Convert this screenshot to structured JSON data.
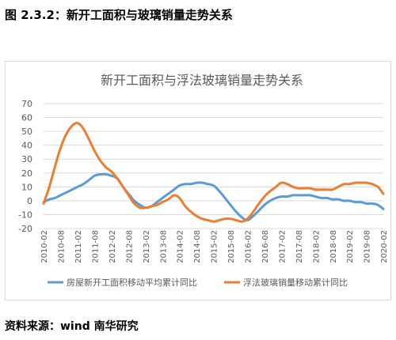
{
  "figure": {
    "title": "图 2.3.2：新开工面积与玻璃销量走势关系",
    "source": "资料来源：wind 南华研究"
  },
  "colors": {
    "series_blue": "#5b9bd5",
    "series_orange": "#ed7d31",
    "grid": "#d9d9d9",
    "axis_text": "#595959"
  },
  "chart_data": {
    "type": "line",
    "title": "新开工面积与浮法玻璃销量走势关系",
    "x_ticks": [
      "2010-02",
      "2010-08",
      "2011-02",
      "2011-08",
      "2012-02",
      "2012-08",
      "2013-02",
      "2013-08",
      "2014-02",
      "2014-08",
      "2015-02",
      "2015-08",
      "2016-02",
      "2016-08",
      "2017-02",
      "2017-08",
      "2018-02",
      "2018-08",
      "2019-02",
      "2019-08",
      "2020-02"
    ],
    "ylim": [
      -20,
      70
    ],
    "y_ticks": [
      -20,
      -10,
      0,
      10,
      20,
      30,
      40,
      50,
      60,
      70
    ],
    "grid": true,
    "legend_position": "bottom",
    "series": [
      {
        "name": "房屋新开工面积移动平均累计同比",
        "color": "#5b9bd5",
        "x": [
          2010.08,
          2010.25,
          2010.42,
          2010.58,
          2010.75,
          2010.92,
          2011.08,
          2011.25,
          2011.42,
          2011.58,
          2011.75,
          2011.92,
          2012.08,
          2012.25,
          2012.42,
          2012.58,
          2012.75,
          2012.92,
          2013.08,
          2013.25,
          2013.42,
          2013.58,
          2013.75,
          2013.92,
          2014.08,
          2014.25,
          2014.42,
          2014.58,
          2014.75,
          2014.92,
          2015.08,
          2015.25,
          2015.42,
          2015.58,
          2015.75,
          2015.92,
          2016.08,
          2016.25,
          2016.42,
          2016.58,
          2016.75,
          2016.92,
          2017.08,
          2017.25,
          2017.42,
          2017.58,
          2017.75,
          2017.92,
          2018.08,
          2018.25,
          2018.42,
          2018.58,
          2018.75,
          2018.92,
          2019.08,
          2019.25,
          2019.42,
          2019.58,
          2019.75,
          2019.92,
          2020.08
        ],
        "y": [
          -1,
          1,
          2,
          4,
          6,
          8,
          10,
          12,
          15,
          18,
          19,
          19,
          18,
          16,
          10,
          5,
          0,
          -3,
          -5,
          -4,
          -1,
          2,
          5,
          8,
          11,
          12,
          12,
          13,
          13,
          12,
          11,
          7,
          2,
          -3,
          -8,
          -12,
          -14,
          -11,
          -7,
          -3,
          0,
          2,
          3,
          3,
          4,
          4,
          4,
          4,
          3,
          2,
          2,
          1,
          1,
          0,
          0,
          -1,
          -1,
          -2,
          -2,
          -3,
          -6
        ]
      },
      {
        "name": "浮法玻璃销量移动累计同比",
        "color": "#ed7d31",
        "x": [
          2010.08,
          2010.25,
          2010.42,
          2010.58,
          2010.75,
          2010.92,
          2011.08,
          2011.25,
          2011.42,
          2011.58,
          2011.75,
          2011.92,
          2012.08,
          2012.25,
          2012.42,
          2012.58,
          2012.75,
          2012.92,
          2013.08,
          2013.25,
          2013.42,
          2013.58,
          2013.75,
          2013.92,
          2014.08,
          2014.25,
          2014.42,
          2014.58,
          2014.75,
          2014.92,
          2015.08,
          2015.25,
          2015.42,
          2015.58,
          2015.75,
          2015.92,
          2016.08,
          2016.25,
          2016.42,
          2016.58,
          2016.75,
          2016.92,
          2017.08,
          2017.25,
          2017.42,
          2017.58,
          2017.75,
          2017.92,
          2018.08,
          2018.25,
          2018.42,
          2018.58,
          2018.75,
          2018.92,
          2019.08,
          2019.25,
          2019.42,
          2019.58,
          2019.75,
          2019.92,
          2020.08
        ],
        "y": [
          -2,
          10,
          25,
          38,
          48,
          54,
          56,
          52,
          44,
          36,
          29,
          24,
          21,
          16,
          10,
          4,
          -2,
          -5,
          -5,
          -4,
          -3,
          -1,
          1,
          4,
          2,
          -4,
          -8,
          -11,
          -13,
          -14,
          -15,
          -14,
          -13,
          -13,
          -14,
          -15,
          -13,
          -8,
          -2,
          3,
          7,
          10,
          13,
          12,
          10,
          9,
          9,
          9,
          8,
          8,
          8,
          8,
          10,
          12,
          12,
          13,
          13,
          13,
          12,
          10,
          5
        ]
      }
    ]
  }
}
